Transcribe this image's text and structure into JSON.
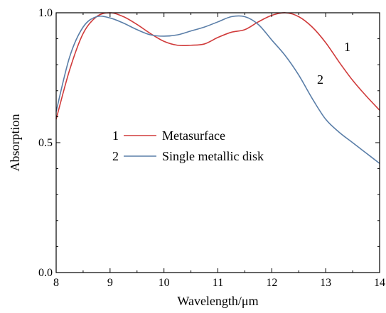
{
  "chart_data": {
    "type": "line",
    "xlabel": "Wavelength/μm",
    "ylabel": "Absorption",
    "xlim": [
      8,
      14
    ],
    "ylim": [
      0.0,
      1.0
    ],
    "xticks": [
      "8",
      "9",
      "10",
      "11",
      "12",
      "13",
      "14"
    ],
    "yticks": [
      "0.0",
      "0.5",
      "1.0"
    ],
    "grid": false,
    "legend": {
      "placement": "center-left",
      "entries": [
        {
          "num": "1",
          "label": "Metasurface"
        },
        {
          "num": "2",
          "label": "Single metallic disk"
        }
      ]
    },
    "curve_labels": [
      "1",
      "2"
    ],
    "series": [
      {
        "name": "Metasurface",
        "color": "#d03b3b",
        "x": [
          8.0,
          8.25,
          8.5,
          8.75,
          9.0,
          9.25,
          9.5,
          9.75,
          10.0,
          10.25,
          10.5,
          10.75,
          11.0,
          11.25,
          11.5,
          11.75,
          12.0,
          12.25,
          12.5,
          12.75,
          13.0,
          13.25,
          13.5,
          13.75,
          14.0
        ],
        "y": [
          0.59,
          0.78,
          0.92,
          0.985,
          1.0,
          0.985,
          0.955,
          0.92,
          0.89,
          0.875,
          0.875,
          0.88,
          0.905,
          0.925,
          0.935,
          0.965,
          0.99,
          1.0,
          0.985,
          0.945,
          0.885,
          0.81,
          0.74,
          0.68,
          0.625
        ]
      },
      {
        "name": "Single metallic disk",
        "color": "#5a7ea8",
        "x": [
          8.0,
          8.25,
          8.5,
          8.75,
          9.0,
          9.25,
          9.5,
          9.75,
          10.0,
          10.25,
          10.5,
          10.75,
          11.0,
          11.25,
          11.5,
          11.75,
          12.0,
          12.25,
          12.5,
          12.75,
          13.0,
          13.25,
          13.5,
          13.75,
          14.0
        ],
        "y": [
          0.62,
          0.83,
          0.945,
          0.985,
          0.98,
          0.96,
          0.935,
          0.915,
          0.91,
          0.915,
          0.93,
          0.945,
          0.965,
          0.985,
          0.985,
          0.955,
          0.895,
          0.835,
          0.76,
          0.67,
          0.59,
          0.54,
          0.5,
          0.46,
          0.42
        ]
      }
    ]
  }
}
